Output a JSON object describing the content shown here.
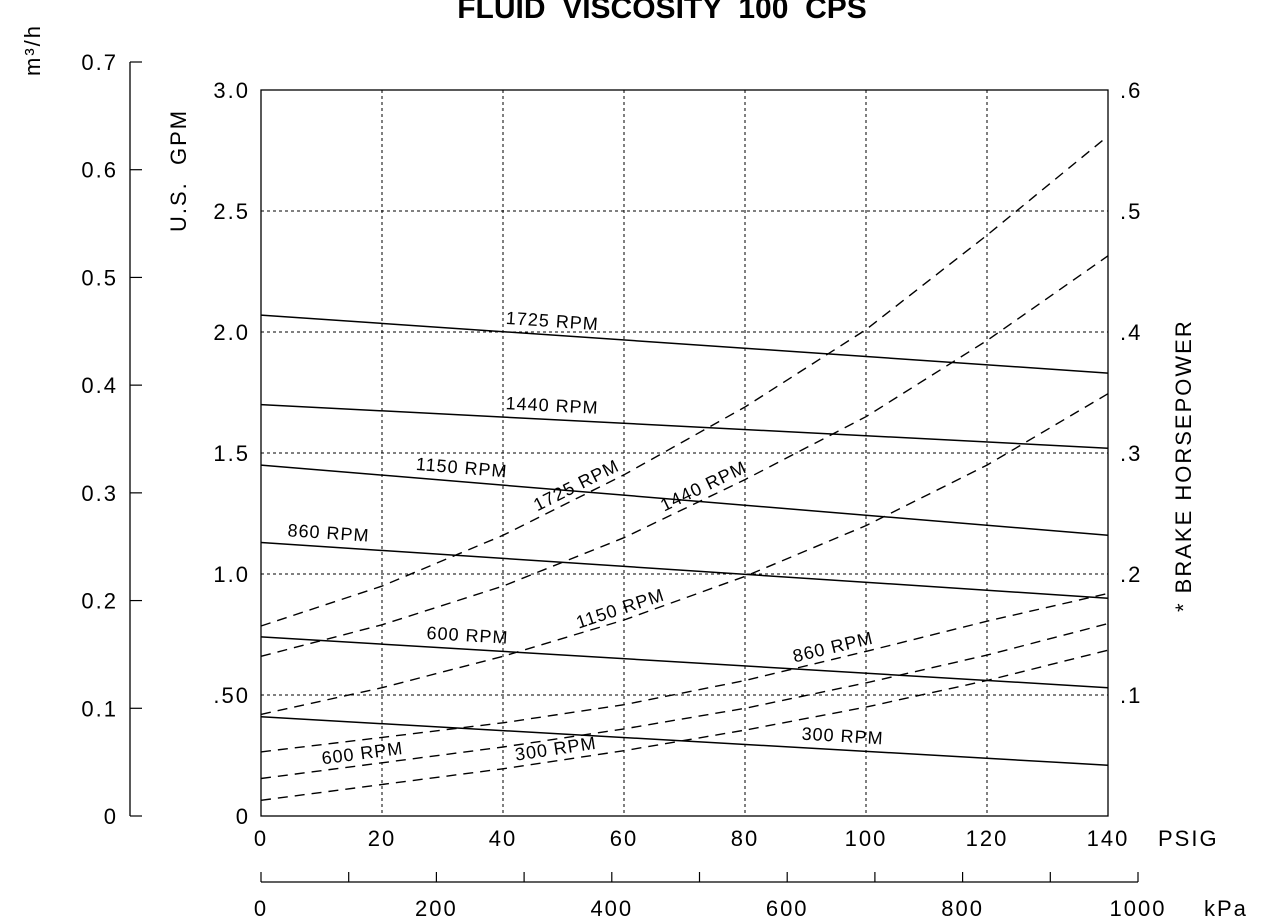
{
  "chart_data": {
    "type": "line",
    "title": "FLUID  VISCOSITY  100  CPS",
    "xlabel": "PSIG",
    "x2label": "kPa",
    "ylabel": "U.S.  GPM",
    "y_outer_label": "m³/h",
    "y2label": "* BRAKE HORSEPOWER",
    "xlim": [
      0,
      140
    ],
    "ylim": [
      0,
      3.0
    ],
    "y2lim": [
      0,
      0.6
    ],
    "kpa_lim": [
      0,
      1000
    ],
    "m3h_lim": [
      0,
      0.7
    ],
    "grid": true,
    "x_ticks": [
      "0",
      "20",
      "40",
      "60",
      "80",
      "100",
      "120",
      "140"
    ],
    "kpa_ticks": [
      "0",
      "200",
      "400",
      "600",
      "800",
      "1000"
    ],
    "y_ticks": [
      "0",
      ".50",
      "1.0",
      "1.5",
      "2.0",
      "2.5",
      "3.0"
    ],
    "y2_ticks": [
      ".1",
      ".2",
      ".3",
      ".4",
      ".5",
      ".6"
    ],
    "m3h_ticks": [
      "0",
      "0.1",
      "0.2",
      "0.3",
      "0.4",
      "0.5",
      "0.6",
      "0.7"
    ],
    "flow_series": [
      {
        "name": "1725 RPM",
        "x": [
          0,
          140
        ],
        "y": [
          2.07,
          1.83
        ]
      },
      {
        "name": "1440 RPM",
        "x": [
          0,
          140
        ],
        "y": [
          1.7,
          1.52
        ]
      },
      {
        "name": "1150 RPM",
        "x": [
          0,
          140
        ],
        "y": [
          1.45,
          1.16
        ]
      },
      {
        "name": "860 RPM",
        "x": [
          0,
          140
        ],
        "y": [
          1.13,
          0.9
        ]
      },
      {
        "name": "600 RPM",
        "x": [
          0,
          140
        ],
        "y": [
          0.74,
          0.53
        ]
      },
      {
        "name": "300 RPM",
        "x": [
          0,
          140
        ],
        "y": [
          0.41,
          0.21
        ]
      }
    ],
    "power_series": [
      {
        "name": "1725 RPM",
        "x": [
          0,
          20,
          40,
          60,
          80,
          100,
          120,
          140
        ],
        "y": [
          0.157,
          0.19,
          0.232,
          0.282,
          0.338,
          0.402,
          0.48,
          0.562
        ]
      },
      {
        "name": "1440 RPM",
        "x": [
          0,
          20,
          40,
          60,
          80,
          100,
          120,
          140
        ],
        "y": [
          0.132,
          0.158,
          0.19,
          0.23,
          0.278,
          0.33,
          0.393,
          0.463
        ]
      },
      {
        "name": "1150 RPM",
        "x": [
          0,
          20,
          40,
          60,
          80,
          100,
          120,
          140
        ],
        "y": [
          0.084,
          0.106,
          0.132,
          0.162,
          0.198,
          0.24,
          0.29,
          0.349
        ]
      },
      {
        "name": "860 RPM",
        "x": [
          0,
          20,
          40,
          60,
          80,
          100,
          120,
          140
        ],
        "y": [
          0.053,
          0.065,
          0.077,
          0.092,
          0.112,
          0.136,
          0.161,
          0.184
        ]
      },
      {
        "name": "600 RPM",
        "x": [
          0,
          20,
          40,
          60,
          80,
          100,
          120,
          140
        ],
        "y": [
          0.031,
          0.044,
          0.057,
          0.072,
          0.089,
          0.11,
          0.133,
          0.159
        ]
      },
      {
        "name": "300 RPM",
        "x": [
          0,
          20,
          40,
          60,
          80,
          100,
          120,
          140
        ],
        "y": [
          0.013,
          0.026,
          0.039,
          0.054,
          0.071,
          0.09,
          0.112,
          0.137
        ]
      }
    ]
  }
}
